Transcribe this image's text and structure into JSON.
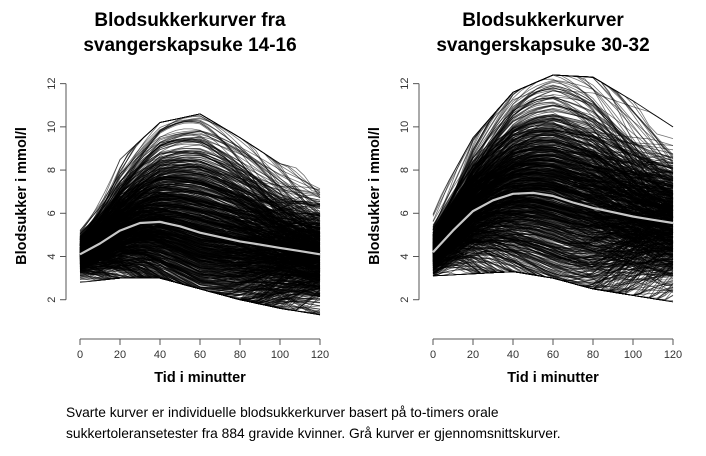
{
  "caption": {
    "line1": "Svarte kurver er individuelle blodsukkerkurver basert på to-timers orale",
    "line2": "sukkertoleransetester  fra 884 gravide kvinner. Grå kurver er gjennomsnittskurver."
  },
  "colors": {
    "individual": "#000000",
    "mean": "#c8c8c8",
    "axis": "#555555"
  },
  "chart_data": [
    {
      "type": "line",
      "title_lines": [
        "Blodsukkerkurver fra",
        "svangerskapsuke 14-16"
      ],
      "xlabel": "Tid i minutter",
      "ylabel": "Blodsukker i mmol/l",
      "xlim": [
        0,
        120
      ],
      "ylim": [
        1.2,
        12.4
      ],
      "x_ticks": [
        0,
        20,
        40,
        60,
        80,
        100,
        120
      ],
      "y_ticks": [
        2,
        4,
        6,
        8,
        10,
        12
      ],
      "grid": false,
      "legend": "none",
      "n_individual_curves": 884,
      "individual_envelope": {
        "x": [
          0,
          20,
          40,
          60,
          80,
          100,
          120
        ],
        "min": [
          2.8,
          3.0,
          3.0,
          2.5,
          2.0,
          1.6,
          1.3
        ],
        "max": [
          5.4,
          8.5,
          10.2,
          10.6,
          9.5,
          8.3,
          7.8
        ]
      },
      "series": [
        {
          "name": "",
          "role": "mean",
          "x": [
            0,
            10,
            20,
            30,
            40,
            50,
            60,
            70,
            80,
            90,
            100,
            110,
            120
          ],
          "values": [
            4.1,
            4.6,
            5.2,
            5.55,
            5.6,
            5.4,
            5.1,
            4.9,
            4.7,
            4.55,
            4.4,
            4.25,
            4.1
          ]
        }
      ]
    },
    {
      "type": "line",
      "title_lines": [
        "Blodsukkerkurver",
        "svangerskapsuke 30-32"
      ],
      "xlabel": "Tid i minutter",
      "ylabel": "Blodsukker i mmol/l",
      "xlim": [
        0,
        120
      ],
      "ylim": [
        1.2,
        12.4
      ],
      "x_ticks": [
        0,
        20,
        40,
        60,
        80,
        100,
        120
      ],
      "y_ticks": [
        2,
        4,
        6,
        8,
        10,
        12
      ],
      "grid": false,
      "legend": "none",
      "n_individual_curves": 884,
      "individual_envelope": {
        "x": [
          0,
          20,
          40,
          60,
          80,
          100,
          120
        ],
        "min": [
          3.1,
          3.2,
          3.3,
          3.0,
          2.5,
          2.2,
          1.9
        ],
        "max": [
          6.2,
          9.5,
          11.6,
          12.4,
          12.3,
          11.2,
          10.0
        ]
      },
      "series": [
        {
          "name": "",
          "role": "mean",
          "x": [
            0,
            10,
            20,
            30,
            40,
            50,
            60,
            70,
            80,
            90,
            100,
            110,
            120
          ],
          "values": [
            4.2,
            5.2,
            6.1,
            6.6,
            6.9,
            6.95,
            6.8,
            6.5,
            6.25,
            6.05,
            5.85,
            5.7,
            5.55
          ]
        }
      ]
    }
  ]
}
